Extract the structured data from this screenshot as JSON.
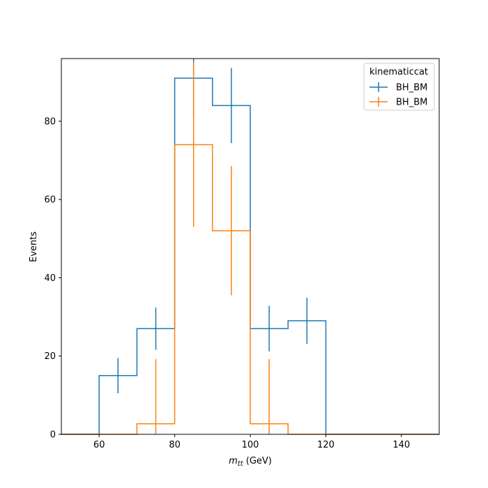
{
  "chart_data": {
    "type": "histogram",
    "xlabel_main": "m",
    "xlabel_sub": "tt",
    "xlabel_unit": " (GeV)",
    "ylabel": "Events",
    "xlim": [
      50,
      150
    ],
    "ylim": [
      0,
      96
    ],
    "xticks": [
      60,
      80,
      100,
      120,
      140
    ],
    "yticks": [
      0,
      20,
      40,
      60,
      80
    ],
    "legend_title": "kinematiccat",
    "legend_position": "top-right",
    "grid": false,
    "bin_edges": [
      50,
      60,
      70,
      80,
      90,
      100,
      110,
      120,
      130,
      140,
      150
    ],
    "series": [
      {
        "name": "BH_BM",
        "color": "#1f77b4",
        "values": [
          0,
          15,
          27,
          91,
          84,
          27,
          29,
          0,
          0,
          0
        ],
        "errors": [
          0,
          4.5,
          5.4,
          9.8,
          9.6,
          5.8,
          5.9,
          0,
          0,
          0
        ]
      },
      {
        "name": "BH_BM",
        "color": "#ff7f0e",
        "values": [
          0,
          0,
          2.7,
          74,
          52,
          2.7,
          0,
          0,
          0,
          0
        ],
        "errors": [
          0,
          0,
          16.5,
          21,
          16.5,
          16.5,
          0,
          0,
          0,
          0
        ]
      }
    ]
  }
}
